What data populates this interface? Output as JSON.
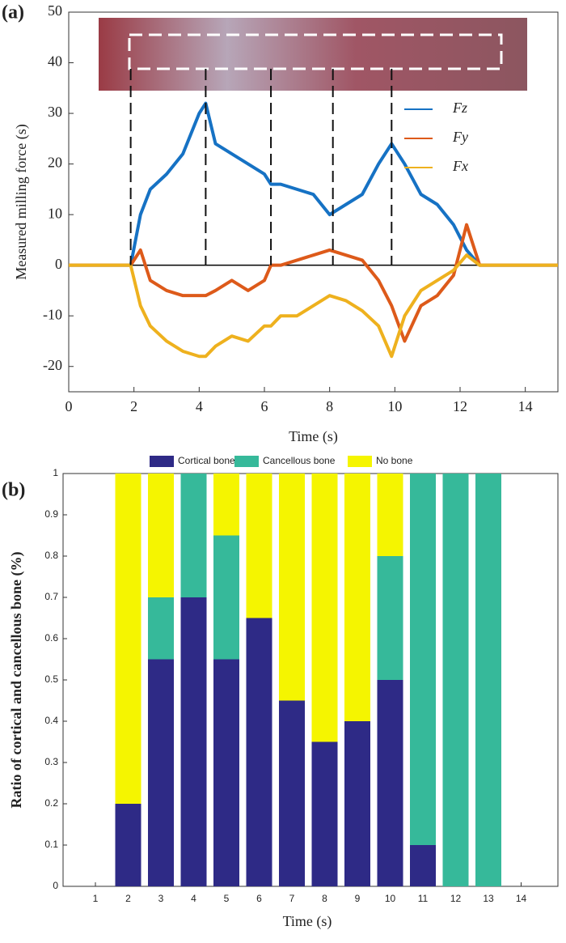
{
  "chart_data": [
    {
      "type": "line",
      "panel_label": "(a)",
      "xlabel": "Time (s)",
      "ylabel": "Measured milling force (s)",
      "xlim": [
        0,
        15
      ],
      "xticks": [
        0,
        2,
        4,
        6,
        8,
        10,
        12,
        14
      ],
      "ylim": [
        -25,
        50
      ],
      "yticks": [
        -20,
        -10,
        0,
        10,
        20,
        30,
        40,
        50
      ],
      "vlines": [
        1.9,
        4.2,
        6.2,
        8.1,
        9.9
      ],
      "x": [
        0,
        1,
        1.9,
        2.2,
        2.5,
        3,
        3.5,
        4,
        4.2,
        4.5,
        5,
        5.5,
        6,
        6.2,
        6.5,
        7,
        7.5,
        8,
        8.5,
        9,
        9.5,
        9.9,
        10.3,
        10.8,
        11.3,
        11.8,
        12.2,
        12.6,
        13,
        15
      ],
      "series": [
        {
          "name": "Fz",
          "color": "#1672c4",
          "values": [
            0,
            0,
            0,
            10,
            15,
            18,
            22,
            30,
            32,
            24,
            22,
            20,
            18,
            16,
            16,
            15,
            14,
            10,
            12,
            14,
            20,
            24,
            20,
            14,
            12,
            8,
            3,
            0,
            0,
            0
          ]
        },
        {
          "name": "Fy",
          "color": "#dd5a1a",
          "values": [
            0,
            0,
            0,
            3,
            -3,
            -5,
            -6,
            -6,
            -6,
            -5,
            -3,
            -5,
            -3,
            0,
            0,
            1,
            2,
            3,
            2,
            1,
            -3,
            -8,
            -15,
            -8,
            -6,
            -2,
            8,
            0,
            0,
            0
          ]
        },
        {
          "name": "Fx",
          "color": "#eeb11e",
          "values": [
            0,
            0,
            0,
            -8,
            -12,
            -15,
            -17,
            -18,
            -18,
            -16,
            -14,
            -15,
            -12,
            -12,
            -10,
            -10,
            -8,
            -6,
            -7,
            -9,
            -12,
            -18,
            -10,
            -5,
            -3,
            -1,
            2,
            0,
            0,
            0
          ]
        }
      ]
    },
    {
      "type": "stacked_bar",
      "panel_label": "(b)",
      "xlabel": "Time (s)",
      "ylabel": "Ratio of cortical and cancellous bone (%)",
      "categories": [
        "1",
        "2",
        "3",
        "4",
        "5",
        "6",
        "7",
        "8",
        "9",
        "10",
        "11",
        "12",
        "13",
        "14"
      ],
      "ylim": [
        0,
        1
      ],
      "yticks": [
        0,
        0.1,
        0.2,
        0.3,
        0.4,
        0.5,
        0.6,
        0.7,
        0.8,
        0.9,
        1
      ],
      "series": [
        {
          "name": "Cortical bone",
          "color": "#2e2a86",
          "values": [
            null,
            0.2,
            0.55,
            0.7,
            0.55,
            0.65,
            0.45,
            0.35,
            0.4,
            0.5,
            0.1,
            0,
            0,
            null
          ]
        },
        {
          "name": "Cancellous bone",
          "color": "#36b99a",
          "values": [
            null,
            0,
            0.15,
            0.3,
            0.3,
            0,
            0,
            0,
            0,
            0.3,
            0.9,
            1,
            1,
            null
          ]
        },
        {
          "name": "No bone",
          "color": "#f5f500",
          "values": [
            null,
            0.8,
            0.3,
            0,
            0.15,
            0.35,
            0.55,
            0.65,
            0.6,
            0.2,
            0,
            0,
            0,
            null
          ]
        }
      ]
    }
  ]
}
